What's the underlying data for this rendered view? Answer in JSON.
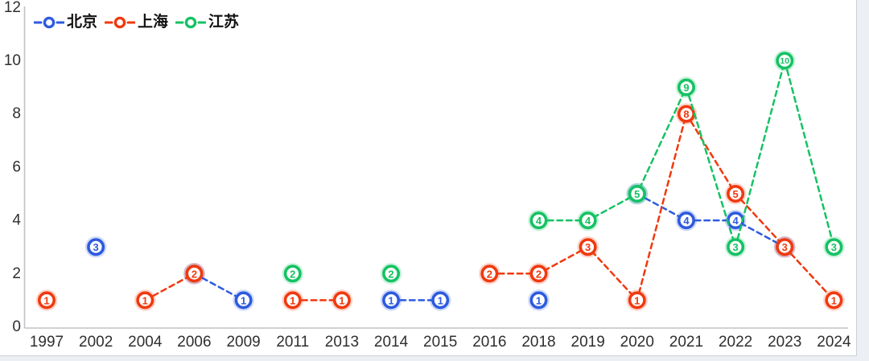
{
  "page": {
    "background": "#eceff4",
    "card_background": "#ffffff",
    "card_border": "#ccd0d6",
    "axis_line_color": "#bfc2c7",
    "tick_label_color": "#2f2f2f"
  },
  "legend": {
    "position": "top-left",
    "items": [
      {
        "id": "beijing",
        "label": "北京"
      },
      {
        "id": "shanghai",
        "label": "上海"
      },
      {
        "id": "jiangsu",
        "label": "江苏"
      }
    ]
  },
  "chart_data": {
    "type": "line",
    "title": "",
    "xlabel": "",
    "ylabel": "",
    "grid": false,
    "line_style": "dashed",
    "markers": "circled value labels",
    "legend_position": "top-left",
    "ylim": [
      0,
      12
    ],
    "y_ticks": [
      0,
      2,
      4,
      6,
      8,
      10,
      12
    ],
    "categories": [
      "1997",
      "2002",
      "2004",
      "2006",
      "2009",
      "2011",
      "2013",
      "2014",
      "2015",
      "2016",
      "2018",
      "2019",
      "2020",
      "2021",
      "2022",
      "2023",
      "2024"
    ],
    "series": [
      {
        "id": "beijing",
        "name": "北京",
        "color": "#2d5adf",
        "values": [
          null,
          3,
          null,
          2,
          1,
          null,
          null,
          1,
          1,
          null,
          1,
          null,
          5,
          4,
          4,
          3,
          null
        ]
      },
      {
        "id": "shanghai",
        "name": "上海",
        "color": "#f0390f",
        "values": [
          1,
          null,
          1,
          2,
          null,
          1,
          1,
          null,
          null,
          2,
          2,
          3,
          1,
          8,
          5,
          3,
          1
        ]
      },
      {
        "id": "jiangsu",
        "name": "江苏",
        "color": "#15c263",
        "values": [
          null,
          null,
          null,
          null,
          null,
          2,
          null,
          2,
          null,
          null,
          4,
          4,
          5,
          9,
          3,
          10,
          3
        ]
      }
    ]
  }
}
